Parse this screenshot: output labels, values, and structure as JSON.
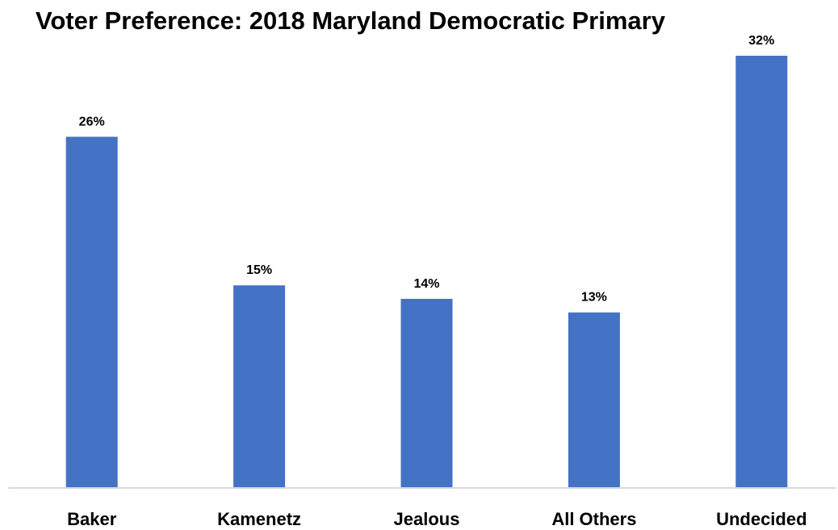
{
  "chart_data": {
    "type": "bar",
    "title": "Voter Preference: 2018 Maryland Democratic Primary",
    "categories": [
      "Baker",
      "Kamenetz",
      "Jealous",
      "All Others",
      "Undecided"
    ],
    "values": [
      26,
      15,
      14,
      13,
      32
    ],
    "value_labels": [
      "26%",
      "15%",
      "14%",
      "13%",
      "32%"
    ],
    "unit": "%",
    "ylim": [
      0,
      32
    ],
    "grid": false,
    "legend": "none",
    "colors": {
      "bar": "#4472C4",
      "axis": "#D9D9D9"
    }
  }
}
